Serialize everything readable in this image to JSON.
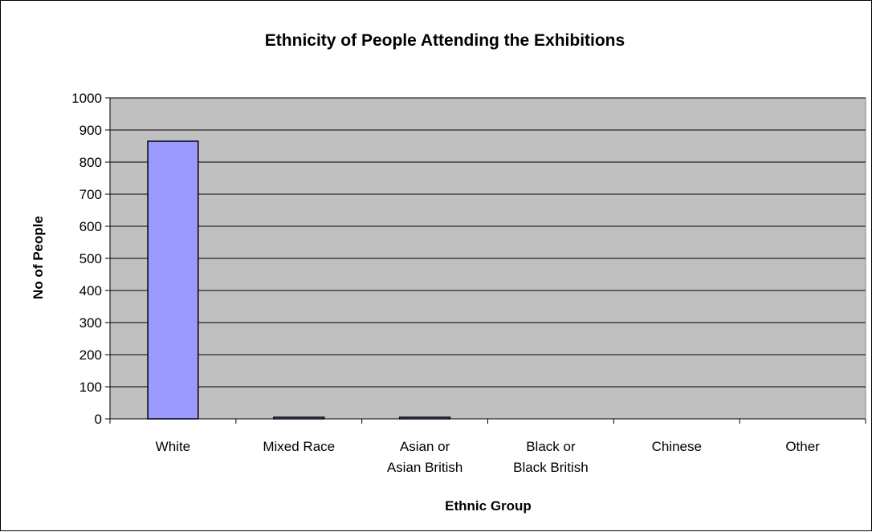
{
  "chart_data": {
    "type": "bar",
    "title": "Ethnicity of People Attending the Exhibitions",
    "xlabel": "Ethnic Group",
    "ylabel": "No of People",
    "categories": [
      [
        "White"
      ],
      [
        "Mixed Race"
      ],
      [
        "Asian or",
        "Asian British"
      ],
      [
        "Black or",
        "Black British"
      ],
      [
        "Chinese"
      ],
      [
        "Other"
      ]
    ],
    "values": [
      865,
      5,
      5,
      0,
      0,
      0
    ],
    "ylim": [
      0,
      1000
    ],
    "yticks": [
      0,
      100,
      200,
      300,
      400,
      500,
      600,
      700,
      800,
      900,
      1000
    ],
    "grid": true,
    "colors": {
      "plot_background": "#c0c0c0",
      "bar_fill": "#9999ff",
      "bar_stroke": "#000000",
      "gridline": "#000000"
    }
  }
}
